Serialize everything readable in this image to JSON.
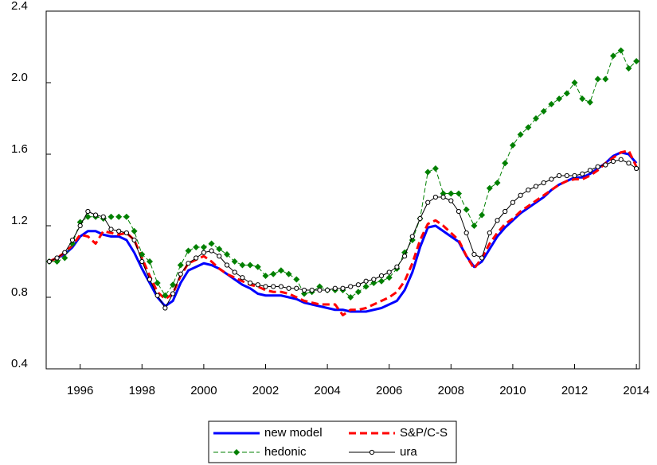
{
  "chart_data": {
    "type": "line",
    "x": [
      1995,
      1995.25,
      1995.5,
      1995.75,
      1996,
      1996.25,
      1996.5,
      1996.75,
      1997,
      1997.25,
      1997.5,
      1997.75,
      1998,
      1998.25,
      1998.5,
      1998.75,
      1999,
      1999.25,
      1999.5,
      1999.75,
      2000,
      2000.25,
      2000.5,
      2000.75,
      2001,
      2001.25,
      2001.5,
      2001.75,
      2002,
      2002.25,
      2002.5,
      2002.75,
      2003,
      2003.25,
      2003.5,
      2003.75,
      2004,
      2004.25,
      2004.5,
      2004.75,
      2005,
      2005.25,
      2005.5,
      2005.75,
      2006,
      2006.25,
      2006.5,
      2006.75,
      2007,
      2007.25,
      2007.5,
      2007.75,
      2008,
      2008.25,
      2008.5,
      2008.75,
      2009,
      2009.25,
      2009.5,
      2009.75,
      2010,
      2010.25,
      2010.5,
      2010.75,
      2011,
      2011.25,
      2011.5,
      2011.75,
      2012,
      2012.25,
      2012.5,
      2012.75,
      2013,
      2013.25,
      2013.5,
      2013.75,
      2014
    ],
    "series": [
      {
        "name": "new model",
        "color": "#0000ff",
        "width": 3,
        "dash": false,
        "marker": "none",
        "values": [
          1.0,
          1.02,
          1.04,
          1.08,
          1.14,
          1.17,
          1.17,
          1.15,
          1.14,
          1.14,
          1.12,
          1.05,
          0.96,
          0.88,
          0.8,
          0.75,
          0.78,
          0.88,
          0.95,
          0.97,
          0.99,
          0.98,
          0.96,
          0.93,
          0.9,
          0.87,
          0.85,
          0.82,
          0.81,
          0.81,
          0.81,
          0.8,
          0.79,
          0.77,
          0.76,
          0.75,
          0.74,
          0.73,
          0.73,
          0.72,
          0.72,
          0.72,
          0.73,
          0.74,
          0.76,
          0.78,
          0.84,
          0.94,
          1.08,
          1.19,
          1.2,
          1.17,
          1.14,
          1.11,
          1.03,
          0.97,
          1.0,
          1.07,
          1.14,
          1.19,
          1.23,
          1.27,
          1.3,
          1.33,
          1.36,
          1.4,
          1.43,
          1.45,
          1.47,
          1.47,
          1.49,
          1.52,
          1.55,
          1.59,
          1.61,
          1.6,
          1.55
        ]
      },
      {
        "name": "S&P/C-S",
        "color": "#ff0000",
        "width": 3,
        "dash": true,
        "marker": "none",
        "values": [
          1.0,
          1.02,
          1.05,
          1.09,
          1.15,
          1.14,
          1.1,
          1.17,
          1.16,
          1.15,
          1.16,
          1.12,
          1.02,
          0.92,
          0.83,
          0.79,
          0.82,
          0.92,
          0.99,
          1.01,
          1.03,
          1.0,
          0.96,
          0.93,
          0.91,
          0.89,
          0.87,
          0.86,
          0.84,
          0.83,
          0.83,
          0.82,
          0.8,
          0.78,
          0.77,
          0.76,
          0.76,
          0.76,
          0.7,
          0.73,
          0.73,
          0.74,
          0.76,
          0.78,
          0.8,
          0.83,
          0.89,
          0.99,
          1.12,
          1.21,
          1.23,
          1.2,
          1.16,
          1.12,
          1.03,
          0.96,
          1.02,
          1.1,
          1.16,
          1.21,
          1.24,
          1.28,
          1.31,
          1.34,
          1.37,
          1.4,
          1.43,
          1.45,
          1.46,
          1.46,
          1.48,
          1.51,
          1.55,
          1.58,
          1.61,
          1.62,
          1.53
        ]
      },
      {
        "name": "hedonic",
        "color": "#008000",
        "width": 1,
        "dash": true,
        "marker": "diamond",
        "values": [
          1.0,
          1.0,
          1.02,
          1.1,
          1.22,
          1.25,
          1.25,
          1.24,
          1.25,
          1.25,
          1.25,
          1.17,
          1.04,
          1.0,
          0.88,
          0.81,
          0.87,
          0.98,
          1.06,
          1.08,
          1.08,
          1.1,
          1.07,
          1.04,
          1.0,
          0.98,
          0.98,
          0.97,
          0.92,
          0.93,
          0.95,
          0.93,
          0.9,
          0.82,
          0.83,
          0.86,
          0.84,
          0.84,
          0.84,
          0.8,
          0.83,
          0.86,
          0.88,
          0.89,
          0.91,
          0.96,
          1.05,
          1.12,
          1.24,
          1.5,
          1.52,
          1.38,
          1.38,
          1.38,
          1.29,
          1.2,
          1.26,
          1.41,
          1.44,
          1.55,
          1.65,
          1.71,
          1.75,
          1.8,
          1.84,
          1.88,
          1.91,
          1.94,
          2.0,
          1.91,
          1.89,
          2.02,
          2.02,
          2.15,
          2.18,
          2.08,
          2.12
        ]
      },
      {
        "name": "ura",
        "color": "#000000",
        "width": 1,
        "dash": false,
        "marker": "circle",
        "values": [
          1.0,
          1.02,
          1.05,
          1.12,
          1.2,
          1.28,
          1.26,
          1.25,
          1.18,
          1.17,
          1.16,
          1.12,
          1.0,
          0.9,
          0.81,
          0.74,
          0.82,
          0.93,
          0.99,
          1.02,
          1.05,
          1.06,
          1.03,
          0.98,
          0.94,
          0.91,
          0.88,
          0.87,
          0.86,
          0.86,
          0.86,
          0.85,
          0.85,
          0.84,
          0.84,
          0.84,
          0.84,
          0.85,
          0.85,
          0.86,
          0.87,
          0.89,
          0.9,
          0.92,
          0.94,
          0.97,
          1.03,
          1.14,
          1.24,
          1.33,
          1.36,
          1.36,
          1.34,
          1.28,
          1.16,
          1.04,
          1.02,
          1.16,
          1.23,
          1.28,
          1.33,
          1.37,
          1.4,
          1.42,
          1.44,
          1.46,
          1.48,
          1.48,
          1.48,
          1.49,
          1.51,
          1.53,
          1.54,
          1.56,
          1.57,
          1.55,
          1.52
        ]
      }
    ],
    "xlim": [
      1994.9,
      2014.1
    ],
    "xticks": [
      1996,
      1998,
      2000,
      2002,
      2004,
      2006,
      2008,
      2010,
      2012,
      2014
    ],
    "ylim": [
      0.4,
      2.4
    ],
    "yticks": [
      0.4,
      0.8,
      1.2,
      {
        "value": 2.0,
        "label": "2.0"
      },
      1.6,
      2.4
    ],
    "grid": false,
    "legend": "bottom"
  }
}
